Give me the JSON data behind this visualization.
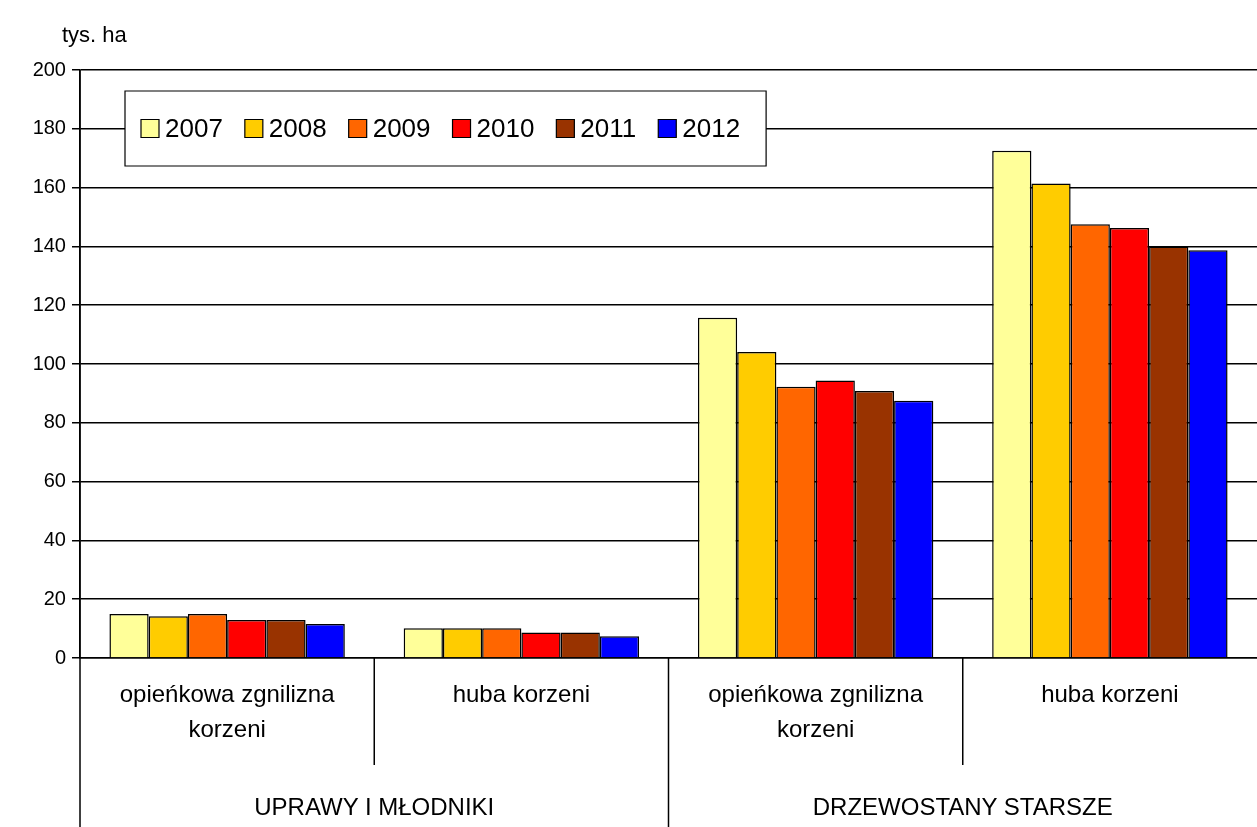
{
  "chart_data": {
    "type": "bar",
    "ylabel": "tys. ha",
    "categories": [
      "opieńkowa zgnilizna korzeni",
      "huba korzeni",
      "opieńkowa zgnilizna korzeni",
      "huba korzeni"
    ],
    "annotations": [
      "UPRAWY I MŁODNIKI",
      "DRZEWOSTANY STARSZE"
    ],
    "series": [
      {
        "name": "2007",
        "color": "#ffff99",
        "values": [
          15.0,
          10.1,
          115.7,
          172.5
        ]
      },
      {
        "name": "2008",
        "color": "#ffcc00",
        "values": [
          14.2,
          10.1,
          104.1,
          161.4
        ]
      },
      {
        "name": "2009",
        "color": "#ff6600",
        "values": [
          15.0,
          10.1,
          92.3,
          147.5
        ]
      },
      {
        "name": "2010",
        "color": "#ff0000",
        "values": [
          12.9,
          8.7,
          94.4,
          146.3
        ]
      },
      {
        "name": "2011",
        "color": "#993300",
        "values": [
          12.9,
          8.7,
          90.8,
          140.0
        ]
      },
      {
        "name": "2012",
        "color": "#0000ff",
        "values": [
          11.6,
          7.4,
          87.5,
          138.7
        ]
      }
    ],
    "ylim": [
      0,
      200
    ],
    "yticks": [
      0,
      20,
      40,
      60,
      80,
      100,
      120,
      140,
      160,
      180,
      200
    ],
    "grid": "y",
    "legend": "top left"
  }
}
